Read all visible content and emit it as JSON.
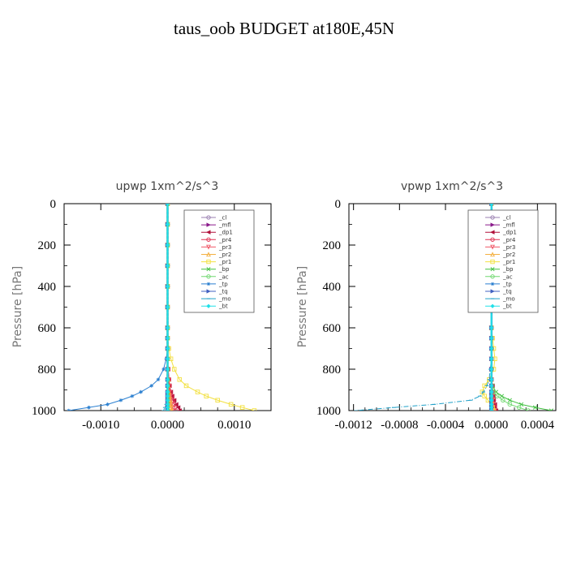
{
  "figure": {
    "title": "taus_oob  BUDGET at180E,45N"
  },
  "colors": {
    "_cl": "#9a7fb0",
    "_mfl": "#8b1a8b",
    "_dp1": "#b0103a",
    "_pr4": "#e03050",
    "_pr3": "#f05868",
    "_pr2": "#f4b040",
    "_pr1": "#f2e040",
    "_bp": "#40c040",
    "_ac": "#70d870",
    "_tp": "#2a7fd0",
    "_tq": "#4060c0",
    "_mo": "#20a0c8",
    "_bt": "#20e0e8"
  },
  "chart_data": [
    {
      "type": "line",
      "title": "upwp   1xm^2/s^3",
      "ylabel": "Pressure [hPa]",
      "ylim": [
        1000,
        0
      ],
      "xlim": [
        -0.00155,
        0.00155
      ],
      "xticks": [
        -0.001,
        0.0,
        0.001
      ],
      "xtick_labels": [
        "-0.0010",
        "0.0000",
        "0.0010"
      ],
      "yticks": [
        0,
        200,
        400,
        600,
        800,
        1000
      ],
      "ytick_labels": [
        "0",
        "200",
        "400",
        "600",
        "800",
        "1000"
      ],
      "legend_position": "top-right",
      "legend": [
        "_cl",
        "_mfl",
        "_dp1",
        "_pr4",
        "_pr3",
        "_pr2",
        "_pr1",
        "_bp",
        "_ac",
        "_tp",
        "_tq",
        "_mo",
        "_bt"
      ],
      "pressure": [
        0,
        100,
        200,
        300,
        400,
        500,
        600,
        650,
        700,
        750,
        800,
        850,
        880,
        910,
        930,
        950,
        970,
        985,
        1000
      ],
      "series": [
        {
          "name": "_cl",
          "values": [
            0,
            0,
            0,
            0,
            0,
            0,
            0,
            0,
            0,
            0,
            0,
            0,
            0,
            0,
            0,
            0,
            0,
            0,
            0
          ]
        },
        {
          "name": "_mfl",
          "values": [
            0,
            0,
            0,
            0,
            0,
            0,
            0,
            0,
            0,
            0,
            0,
            0,
            0,
            0,
            0,
            0,
            0,
            0,
            0
          ]
        },
        {
          "name": "_dp1",
          "values": [
            0,
            0,
            0,
            0,
            0,
            0,
            0,
            0,
            0,
            0,
            1e-05,
            2e-05,
            3e-05,
            5e-05,
            7e-05,
            0.0001,
            0.00013,
            0.00016,
            0.00018
          ]
        },
        {
          "name": "_pr4",
          "values": [
            0,
            0,
            0,
            0,
            0,
            0,
            0,
            0,
            0,
            0,
            1e-05,
            2e-05,
            3e-05,
            4e-05,
            6e-05,
            8e-05,
            0.0001,
            0.00011,
            0.00012
          ]
        },
        {
          "name": "_pr3",
          "values": [
            0,
            0,
            0,
            0,
            0,
            0,
            0,
            0,
            0,
            0,
            0,
            1e-05,
            2e-05,
            3e-05,
            4e-05,
            5e-05,
            6e-05,
            7e-05,
            8e-05
          ]
        },
        {
          "name": "_pr2",
          "values": [
            0,
            0,
            0,
            0,
            0,
            0,
            0,
            0,
            0,
            0,
            0,
            1e-05,
            1e-05,
            2e-05,
            3e-05,
            4e-05,
            5e-05,
            5e-05,
            6e-05
          ]
        },
        {
          "name": "_pr1",
          "values": [
            0,
            0,
            0,
            0,
            0,
            0,
            0,
            0,
            2e-05,
            5e-05,
            0.0001,
            0.00018,
            0.00028,
            0.00045,
            0.00058,
            0.00075,
            0.00095,
            0.00112,
            0.0013
          ]
        },
        {
          "name": "_bp",
          "values": [
            0,
            0,
            0,
            0,
            0,
            0,
            0,
            0,
            0,
            0,
            0,
            0,
            0,
            0,
            0,
            0,
            0,
            0,
            0
          ]
        },
        {
          "name": "_ac",
          "values": [
            0,
            0,
            0,
            0,
            0,
            0,
            0,
            0,
            0,
            0,
            0,
            0,
            0,
            0,
            0,
            0,
            0,
            0,
            0
          ]
        },
        {
          "name": "_tp",
          "values": [
            0,
            0,
            0,
            0,
            0,
            0,
            0,
            0,
            0,
            -2e-05,
            -6e-05,
            -0.00014,
            -0.00024,
            -0.0004,
            -0.00053,
            -0.0007,
            -0.0009,
            -0.00118,
            -0.00148
          ]
        },
        {
          "name": "_tq",
          "values": [
            0,
            0,
            0,
            0,
            0,
            0,
            0,
            0,
            0,
            0,
            0,
            0,
            0,
            0,
            0,
            0,
            0,
            0,
            0
          ]
        },
        {
          "name": "_mo",
          "values": [
            0,
            0,
            0,
            0,
            0,
            0,
            0,
            0,
            0,
            0,
            0,
            0,
            0,
            0,
            0,
            0,
            -2e-05,
            -4e-05,
            -6e-05
          ]
        },
        {
          "name": "_bt",
          "values": [
            0,
            0,
            0,
            0,
            0,
            0,
            0,
            0,
            0,
            0,
            0,
            0,
            0,
            0,
            0,
            0,
            0,
            0,
            0
          ]
        }
      ]
    },
    {
      "type": "line",
      "title": "vpwp   1xm^2/s^3",
      "ylabel": "Pressure [hPa]",
      "ylim": [
        1000,
        0
      ],
      "xlim": [
        -0.00124,
        0.00056
      ],
      "xticks": [
        -0.0012,
        -0.0008,
        -0.0004,
        0.0,
        0.0004
      ],
      "xtick_labels": [
        "-0.0012",
        "-0.0008",
        "-0.0004",
        "0.0000",
        "0.0004"
      ],
      "yticks": [
        0,
        200,
        400,
        600,
        800,
        1000
      ],
      "ytick_labels": [
        "0",
        "200",
        "400",
        "600",
        "800",
        "1000"
      ],
      "legend_position": "top-right",
      "legend": [
        "_cl",
        "_mfl",
        "_dp1",
        "_pr4",
        "_pr3",
        "_pr2",
        "_pr1",
        "_bp",
        "_ac",
        "_tp",
        "_tq",
        "_mo",
        "_bt"
      ],
      "pressure": [
        0,
        100,
        200,
        300,
        400,
        500,
        600,
        650,
        700,
        750,
        800,
        850,
        880,
        910,
        930,
        950,
        970,
        985,
        1000
      ],
      "series": [
        {
          "name": "_cl",
          "values": [
            0,
            0,
            0,
            0,
            0,
            0,
            0,
            0,
            0,
            0,
            0,
            0,
            0,
            0,
            0,
            0,
            0,
            0,
            0
          ]
        },
        {
          "name": "_mfl",
          "values": [
            0,
            0,
            0,
            0,
            0,
            0,
            0,
            0,
            0,
            0,
            0,
            0,
            0,
            0,
            0,
            0,
            0,
            0,
            0
          ]
        },
        {
          "name": "_dp1",
          "values": [
            0,
            0,
            0,
            0,
            0,
            0,
            0,
            0,
            0,
            0,
            0,
            0,
            1e-05,
            1e-05,
            2e-05,
            2e-05,
            3e-05,
            3e-05,
            4e-05
          ]
        },
        {
          "name": "_pr4",
          "values": [
            0,
            0,
            0,
            0,
            0,
            0,
            0,
            0,
            0,
            0,
            0,
            0,
            0,
            1e-05,
            1e-05,
            2e-05,
            2e-05,
            3e-05,
            3e-05
          ]
        },
        {
          "name": "_pr3",
          "values": [
            0,
            0,
            0,
            0,
            0,
            0,
            0,
            0,
            0,
            0,
            0,
            0,
            0,
            0,
            0,
            1e-05,
            1e-05,
            1e-05,
            2e-05
          ]
        },
        {
          "name": "_pr2",
          "values": [
            0,
            0,
            0,
            0,
            0,
            0,
            0,
            0,
            0,
            0,
            0,
            0,
            0,
            0,
            0,
            0,
            0,
            0,
            1e-05
          ]
        },
        {
          "name": "_pr1",
          "values": [
            0,
            0,
            0,
            0,
            0,
            0,
            0,
            1e-05,
            2e-05,
            3e-05,
            2e-05,
            -2e-05,
            -6e-05,
            -8e-05,
            -6e-05,
            -3e-05,
            0,
            1e-05,
            2e-05
          ]
        },
        {
          "name": "_bp",
          "values": [
            0,
            0,
            0,
            0,
            0,
            0,
            0,
            0,
            0,
            0,
            0,
            0,
            1e-05,
            4e-05,
            9e-05,
            0.00016,
            0.00026,
            0.00038,
            0.00052
          ]
        },
        {
          "name": "_ac",
          "values": [
            0,
            0,
            0,
            0,
            0,
            0,
            0,
            0,
            0,
            0,
            0,
            0,
            0,
            2e-05,
            5e-05,
            0.0001,
            0.00016,
            0.00024,
            0.00032
          ]
        },
        {
          "name": "_tp",
          "values": [
            0,
            0,
            0,
            0,
            0,
            0,
            0,
            0,
            0,
            0,
            0,
            0,
            0,
            0,
            0,
            0,
            0,
            0,
            0
          ]
        },
        {
          "name": "_tq",
          "values": [
            0,
            0,
            0,
            0,
            0,
            0,
            0,
            0,
            0,
            0,
            0,
            0,
            0,
            0,
            0,
            0,
            0,
            0,
            0
          ]
        },
        {
          "name": "_mo",
          "values": [
            0,
            0,
            0,
            0,
            0,
            0,
            0,
            0,
            0,
            0,
            -1e-05,
            -2e-05,
            -4e-05,
            -7e-05,
            -0.0001,
            -0.00018,
            -0.0005,
            -0.00085,
            -0.00118
          ]
        },
        {
          "name": "_bt",
          "values": [
            0,
            0,
            0,
            0,
            0,
            0,
            0,
            0,
            0,
            0,
            0,
            0,
            0,
            0,
            0,
            0,
            0,
            0,
            0
          ]
        }
      ]
    }
  ]
}
